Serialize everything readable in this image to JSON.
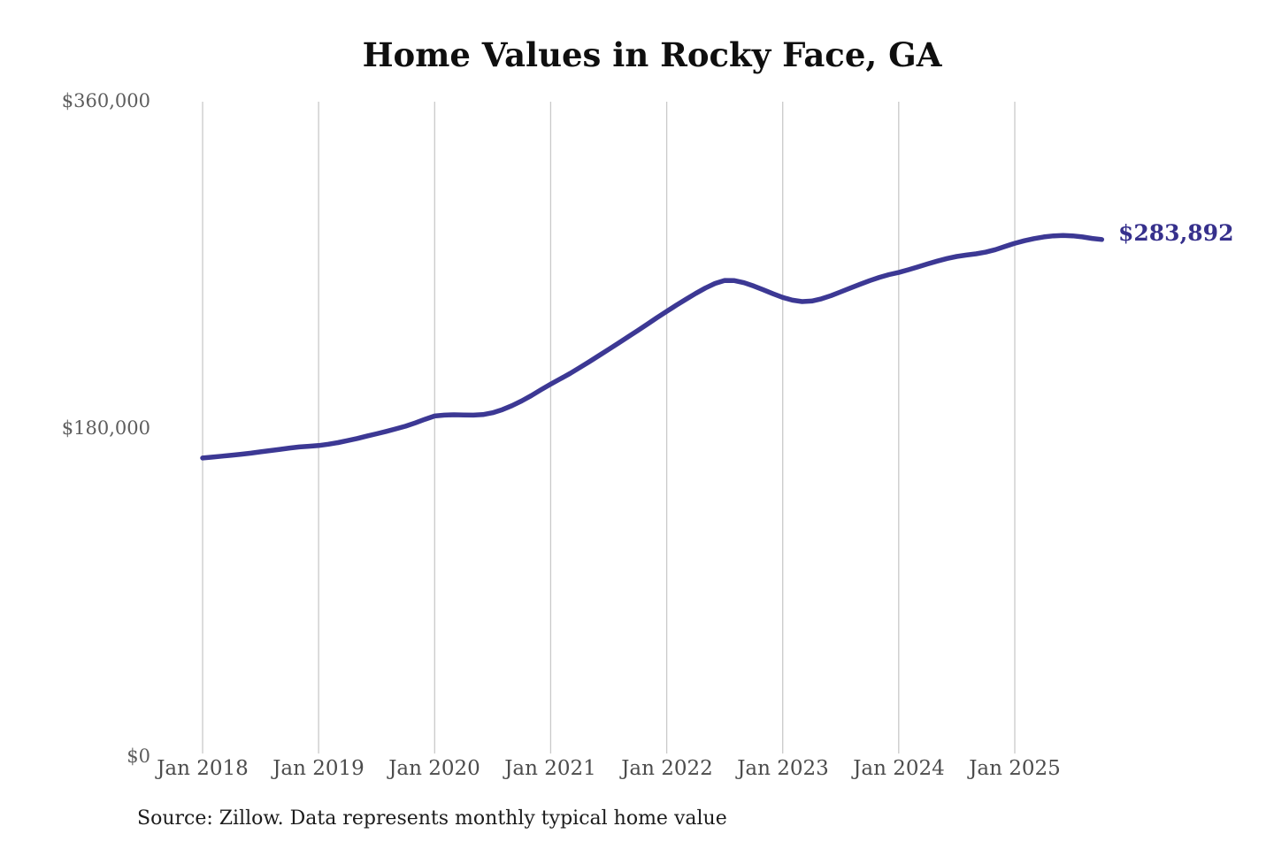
{
  "chart_data": {
    "type": "line",
    "title": "Home Values in Rocky Face, GA",
    "source_note": "Source: Zillow. Data represents monthly typical home value",
    "end_label": "$283,892",
    "final_value": 283892,
    "unit": "USD",
    "frequency": "monthly",
    "start_month": "2018-01",
    "end_month": "2025-10",
    "ylim": [
      0,
      360000
    ],
    "y_tick_values": [
      360000,
      180000,
      0
    ],
    "y_tick_labels": [
      "$360,000",
      "$180,000",
      "$0"
    ],
    "x_tick_labels": [
      "Jan 2018",
      "Jan 2019",
      "Jan 2020",
      "Jan 2021",
      "Jan 2022",
      "Jan 2023",
      "Jan 2024",
      "Jan 2025"
    ],
    "grid": "vertical-only",
    "legend": "none",
    "values": [
      163200,
      163700,
      164200,
      164700,
      165300,
      165900,
      166600,
      167300,
      168000,
      168700,
      169300,
      169700,
      170100,
      170800,
      171700,
      172800,
      174000,
      175300,
      176600,
      177900,
      179300,
      180800,
      182600,
      184600,
      186400,
      186900,
      187100,
      187000,
      186900,
      187200,
      188200,
      189900,
      192100,
      194700,
      197700,
      200900,
      204000,
      206900,
      209900,
      213100,
      216400,
      219800,
      223200,
      226600,
      230100,
      233600,
      237100,
      240700,
      244200,
      247600,
      250900,
      254100,
      257100,
      259600,
      261300,
      261200,
      260000,
      258200,
      256100,
      253900,
      251900,
      250400,
      249600,
      249900,
      251100,
      252900,
      255000,
      257100,
      259200,
      261200,
      263000,
      264500,
      265700,
      267200,
      268800,
      270400,
      272000,
      273400,
      274500,
      275300,
      276000,
      276900,
      278300,
      280100,
      281800,
      283200,
      284400,
      285300,
      285900,
      286100,
      285900,
      285300,
      284500,
      283892
    ]
  },
  "colors": {
    "line": "#3c3894",
    "gridline": "#c9c9c9",
    "end_label_text": "#36308c",
    "axis_text": "#5d5d5d",
    "title_text": "#0f0f0f"
  }
}
